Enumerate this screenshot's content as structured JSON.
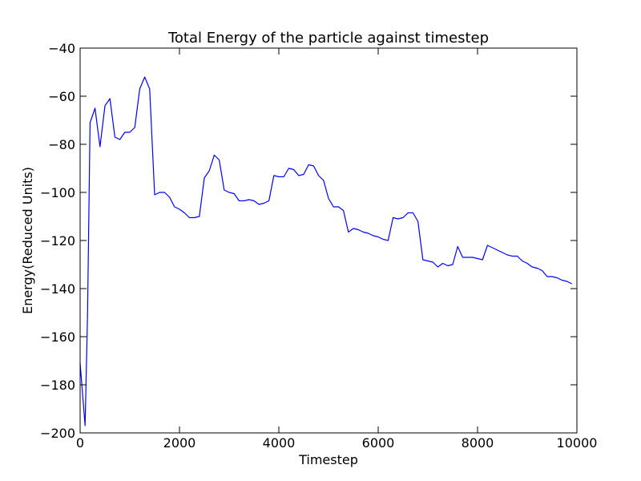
{
  "chart_data": {
    "type": "line",
    "title": "Total Energy of the particle against timestep",
    "xlabel": "Timestep",
    "ylabel": "Energy(Reduced Units)",
    "xlim": [
      0,
      10000
    ],
    "ylim": [
      -200,
      -40
    ],
    "xticks": [
      0,
      2000,
      4000,
      6000,
      8000,
      10000
    ],
    "xtick_labels": [
      "0",
      "2000",
      "4000",
      "6000",
      "8000",
      "10000"
    ],
    "yticks": [
      -200,
      -180,
      -160,
      -140,
      -120,
      -100,
      -80,
      -60,
      -40
    ],
    "ytick_labels": [
      "−200",
      "−180",
      "−160",
      "−140",
      "−120",
      "−100",
      "−80",
      "−60",
      "−40"
    ],
    "grid": false,
    "line_color": "#0000ff",
    "series": [
      {
        "x": [
          0,
          100,
          150,
          200,
          300,
          400,
          500,
          600,
          700,
          800,
          900,
          1000,
          1100,
          1200,
          1300,
          1400,
          1500,
          1600,
          1700,
          1800,
          1900,
          2000,
          2100,
          2200,
          2300,
          2400,
          2500,
          2600,
          2700,
          2800,
          2900,
          3000,
          3100,
          3200,
          3300,
          3400,
          3500,
          3600,
          3700,
          3800,
          3900,
          4000,
          4100,
          4200,
          4300,
          4400,
          4500,
          4600,
          4700,
          4800,
          4900,
          5000,
          5100,
          5200,
          5300,
          5400,
          5500,
          5600,
          5700,
          5800,
          5900,
          6000,
          6100,
          6200,
          6300,
          6400,
          6500,
          6600,
          6700,
          6800,
          6900,
          7000,
          7100,
          7200,
          7300,
          7400,
          7500,
          7600,
          7700,
          7800,
          7900,
          8000,
          8100,
          8200,
          8300,
          8400,
          8500,
          8600,
          8700,
          8800,
          8900,
          9000,
          9100,
          9200,
          9300,
          9400,
          9500,
          9600,
          9700,
          9800,
          9900
        ],
        "values": [
          -171,
          -197,
          -150,
          -71,
          -65,
          -81,
          -64,
          -61,
          -77,
          -78,
          -75,
          -75,
          -73,
          -57,
          -52,
          -57,
          -101,
          -100,
          -100,
          -102,
          -106,
          -107,
          -108.5,
          -110.5,
          -110.5,
          -110,
          -94,
          -91,
          -84.5,
          -86.5,
          -99,
          -100,
          -100.5,
          -103.5,
          -103.5,
          -103,
          -103.5,
          -105,
          -104.5,
          -103.5,
          -93,
          -93.5,
          -93.5,
          -90,
          -90.5,
          -93,
          -92.5,
          -88.5,
          -89,
          -93,
          -95,
          -102.5,
          -106,
          -106,
          -107.5,
          -116.5,
          -115,
          -115.5,
          -116.5,
          -117,
          -118,
          -118.5,
          -119.5,
          -120,
          -110.5,
          -111,
          -110.5,
          -108.5,
          -108.5,
          -112,
          -128,
          -128.5,
          -129,
          -131,
          -129.5,
          -130.5,
          -130,
          -122.5,
          -127,
          -127,
          -127,
          -127.5,
          -128,
          -122,
          -123,
          -124,
          -125,
          -126,
          -126.5,
          -126.5,
          -128.5,
          -129.5,
          -131,
          -131.5,
          -132.5,
          -135,
          -135,
          -135.5,
          -136.5,
          -137,
          -138
        ]
      }
    ]
  }
}
